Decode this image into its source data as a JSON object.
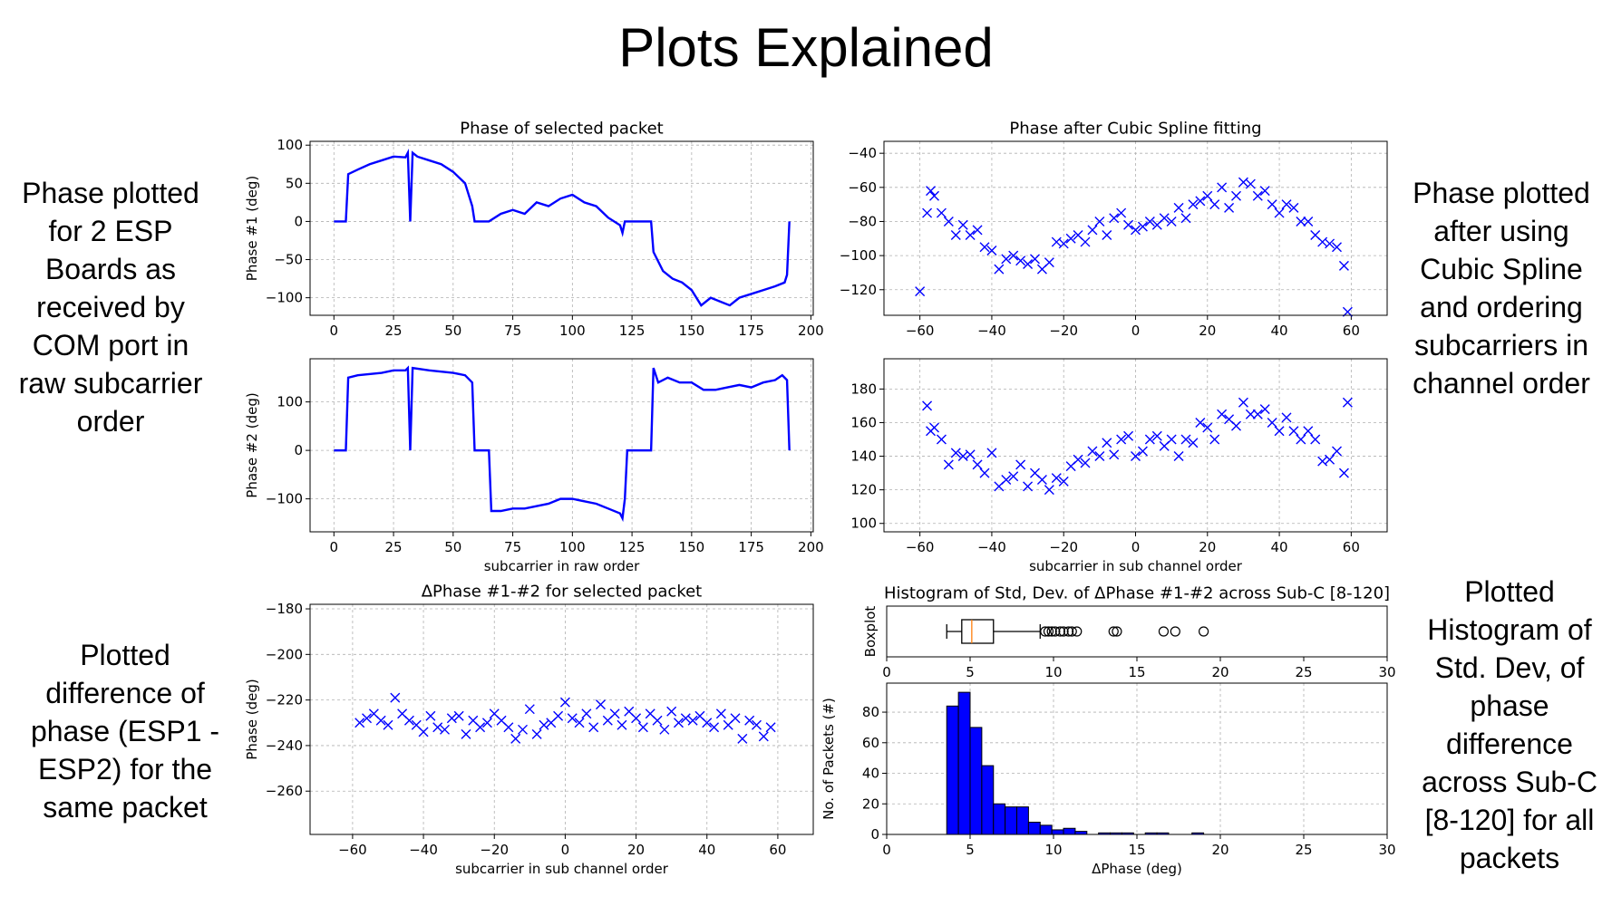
{
  "title": "Plots Explained",
  "captions": [
    "Phase plotted for 2 ESP Boards as received by COM port in raw subcarrier order",
    "Phase plotted after using Cubic Spline and ordering subcarriers in channel order",
    "Plotted difference of phase (ESP1 - ESP2) for the same packet",
    "Plotted Histogram of Std. Dev, of phase difference across Sub-C [8-120] for all packets"
  ],
  "chart_data": [
    {
      "type": "line",
      "title": "Phase of selected packet",
      "ylabel": "Phase #1 (deg)",
      "color": "#0000ff",
      "grid": true,
      "x": [
        0,
        5,
        6,
        10,
        15,
        20,
        25,
        30,
        31,
        32,
        33,
        35,
        40,
        45,
        50,
        55,
        58,
        59,
        65,
        70,
        75,
        80,
        85,
        90,
        95,
        100,
        105,
        110,
        115,
        120,
        121,
        122,
        133,
        134,
        138,
        142,
        146,
        150,
        154,
        158,
        162,
        166,
        170,
        175,
        180,
        185,
        189,
        190,
        191
      ],
      "values": [
        0,
        0,
        62,
        68,
        75,
        80,
        85,
        84,
        90,
        0,
        90,
        85,
        80,
        75,
        65,
        50,
        20,
        0,
        0,
        10,
        15,
        10,
        25,
        20,
        30,
        35,
        25,
        20,
        5,
        -5,
        -15,
        0,
        0,
        -40,
        -65,
        -75,
        -80,
        -90,
        -110,
        -100,
        -105,
        -110,
        -100,
        -95,
        -90,
        -85,
        -80,
        -70,
        0
      ],
      "xlim": [
        -10,
        201
      ],
      "ylim": [
        -123,
        105
      ],
      "xticks": [
        0,
        25,
        50,
        75,
        100,
        125,
        150,
        175,
        200
      ],
      "yticks": [
        {
          "value": -100,
          "label": "−100"
        },
        {
          "value": -50,
          "label": "−50"
        },
        0,
        50,
        100
      ]
    },
    {
      "type": "line",
      "ylabel": "Phase #2 (deg)",
      "xlabel": "subcarrier in raw order",
      "color": "#0000ff",
      "grid": true,
      "x": [
        0,
        5,
        6,
        10,
        20,
        25,
        30,
        31,
        32,
        33,
        40,
        50,
        55,
        58,
        59,
        65,
        66,
        70,
        75,
        80,
        90,
        95,
        100,
        105,
        110,
        115,
        120,
        121,
        122,
        123,
        133,
        134,
        136,
        140,
        145,
        150,
        155,
        160,
        165,
        170,
        175,
        180,
        185,
        188,
        190,
        191
      ],
      "values": [
        0,
        0,
        150,
        155,
        160,
        165,
        165,
        170,
        0,
        170,
        165,
        160,
        155,
        140,
        0,
        0,
        -125,
        -125,
        -120,
        -120,
        -110,
        -100,
        -100,
        -105,
        -110,
        -120,
        -130,
        -140,
        -100,
        0,
        0,
        170,
        140,
        150,
        140,
        140,
        125,
        125,
        130,
        135,
        130,
        140,
        145,
        155,
        145,
        0
      ],
      "xlim": [
        -10,
        201
      ],
      "ylim": [
        -168,
        189
      ],
      "xticks": [
        0,
        25,
        50,
        75,
        100,
        125,
        150,
        175,
        200
      ],
      "yticks": [
        {
          "value": -100,
          "label": "−100"
        },
        0,
        100
      ]
    },
    {
      "type": "scatter",
      "title": "Phase after Cubic Spline fitting",
      "color": "#0000ff",
      "grid": true,
      "x": [
        -60,
        -58,
        -57,
        -56,
        -54,
        -52,
        -50,
        -48,
        -46,
        -44,
        -42,
        -40,
        -38,
        -36,
        -34,
        -32,
        -30,
        -28,
        -26,
        -24,
        -22,
        -20,
        -18,
        -16,
        -14,
        -12,
        -10,
        -8,
        -6,
        -4,
        -2,
        0,
        2,
        4,
        6,
        8,
        10,
        12,
        14,
        16,
        18,
        20,
        22,
        24,
        26,
        28,
        30,
        32,
        34,
        36,
        38,
        40,
        42,
        44,
        46,
        48,
        50,
        52,
        54,
        56,
        58,
        59
      ],
      "values": [
        -121,
        -75,
        -62,
        -65,
        -75,
        -80,
        -88,
        -82,
        -88,
        -85,
        -95,
        -97,
        -108,
        -102,
        -100,
        -103,
        -105,
        -102,
        -108,
        -104,
        -92,
        -93,
        -90,
        -88,
        -92,
        -85,
        -80,
        -88,
        -78,
        -75,
        -82,
        -85,
        -83,
        -80,
        -82,
        -78,
        -80,
        -72,
        -78,
        -70,
        -68,
        -65,
        -70,
        -60,
        -72,
        -65,
        -57,
        -58,
        -65,
        -62,
        -70,
        -75,
        -70,
        -72,
        -80,
        -80,
        -88,
        -92,
        -93,
        -95,
        -106,
        -133
      ],
      "xlim": [
        -70,
        70
      ],
      "ylim": [
        -135,
        -33
      ],
      "xticks": [
        {
          "value": -60,
          "label": "−60"
        },
        {
          "value": -40,
          "label": "−40"
        },
        {
          "value": -20,
          "label": "−20"
        },
        0,
        20,
        40,
        60
      ],
      "yticks": [
        {
          "value": -120,
          "label": "−120"
        },
        {
          "value": -100,
          "label": "−100"
        },
        {
          "value": -80,
          "label": "−80"
        },
        {
          "value": -60,
          "label": "−60"
        },
        {
          "value": -40,
          "label": "−40"
        }
      ]
    },
    {
      "type": "scatter",
      "xlabel": "subcarrier in sub channel order",
      "color": "#0000ff",
      "grid": true,
      "x": [
        -58,
        -57,
        -56,
        -54,
        -52,
        -50,
        -48,
        -46,
        -44,
        -42,
        -40,
        -38,
        -36,
        -34,
        -32,
        -30,
        -28,
        -26,
        -24,
        -22,
        -20,
        -18,
        -16,
        -14,
        -12,
        -10,
        -8,
        -6,
        -4,
        -2,
        0,
        2,
        4,
        6,
        8,
        10,
        12,
        14,
        16,
        18,
        20,
        22,
        24,
        26,
        28,
        30,
        32,
        34,
        36,
        38,
        40,
        42,
        44,
        46,
        48,
        50,
        52,
        54,
        56,
        58,
        59
      ],
      "values": [
        170,
        155,
        157,
        150,
        135,
        142,
        140,
        141,
        135,
        130,
        142,
        122,
        126,
        128,
        135,
        122,
        130,
        126,
        120,
        127,
        125,
        134,
        138,
        136,
        143,
        140,
        148,
        141,
        150,
        152,
        140,
        143,
        150,
        152,
        146,
        150,
        140,
        150,
        148,
        160,
        157,
        150,
        165,
        162,
        158,
        172,
        165,
        165,
        168,
        160,
        155,
        163,
        155,
        150,
        155,
        150,
        137,
        138,
        143,
        130,
        172
      ],
      "xlim": [
        -70,
        70
      ],
      "ylim": [
        95,
        198
      ],
      "xticks": [
        {
          "value": -60,
          "label": "−60"
        },
        {
          "value": -40,
          "label": "−40"
        },
        {
          "value": -20,
          "label": "−20"
        },
        0,
        20,
        40,
        60
      ],
      "yticks": [
        100,
        120,
        140,
        160,
        180
      ]
    },
    {
      "type": "scatter",
      "title": "ΔPhase #1-#2 for selected packet",
      "ylabel": "Phase (deg)",
      "xlabel": "subcarrier in sub channel order",
      "color": "#0000ff",
      "grid": true,
      "x": [
        -58,
        -56,
        -54,
        -52,
        -50,
        -48,
        -46,
        -44,
        -42,
        -40,
        -38,
        -36,
        -34,
        -32,
        -30,
        -28,
        -26,
        -24,
        -22,
        -20,
        -18,
        -16,
        -14,
        -12,
        -10,
        -8,
        -6,
        -4,
        -2,
        0,
        2,
        4,
        6,
        8,
        10,
        12,
        14,
        16,
        18,
        20,
        22,
        24,
        26,
        28,
        30,
        32,
        34,
        36,
        38,
        40,
        42,
        44,
        46,
        48,
        50,
        52,
        54,
        56,
        58
      ],
      "values": [
        -230,
        -228,
        -226,
        -229,
        -231,
        -219,
        -226,
        -229,
        -231,
        -234,
        -227,
        -232,
        -233,
        -228,
        -227,
        -235,
        -229,
        -232,
        -230,
        -226,
        -229,
        -232,
        -237,
        -233,
        -224,
        -235,
        -231,
        -230,
        -227,
        -221,
        -228,
        -230,
        -226,
        -232,
        -222,
        -229,
        -226,
        -231,
        -225,
        -228,
        -232,
        -226,
        -229,
        -233,
        -225,
        -230,
        -228,
        -229,
        -227,
        -230,
        -232,
        -226,
        -231,
        -228,
        -237,
        -229,
        -231,
        -236,
        -232
      ],
      "xlim": [
        -72,
        70
      ],
      "ylim": [
        -279,
        -178
      ],
      "xticks": [
        {
          "value": -60,
          "label": "−60"
        },
        {
          "value": -40,
          "label": "−40"
        },
        {
          "value": -20,
          "label": "−20"
        },
        0,
        20,
        40,
        60
      ],
      "yticks": [
        {
          "value": -260,
          "label": "−260"
        },
        {
          "value": -240,
          "label": "−240"
        },
        {
          "value": -220,
          "label": "−220"
        },
        {
          "value": -200,
          "label": "−200"
        },
        {
          "value": -180,
          "label": "−180"
        }
      ]
    },
    {
      "type": "box",
      "title": "Histogram of Std, Dev. of ΔPhase #1-#2 across Sub-C [8-120]",
      "ylabel": "Boxplot",
      "color": "#000000",
      "median_color": "#ff7f0e",
      "grid": false,
      "stats": {
        "whislo": 3.6,
        "q1": 4.5,
        "med": 5.1,
        "q3": 6.4,
        "whishi": 9.2
      },
      "fliers": [
        9.5,
        9.7,
        9.9,
        10.1,
        10.4,
        10.6,
        10.9,
        11.1,
        11.4,
        13.6,
        13.8,
        16.6,
        17.3,
        19.0
      ],
      "xlim": [
        0,
        30
      ],
      "xticks": [
        0,
        5,
        10,
        15,
        20,
        25,
        30
      ]
    },
    {
      "type": "histogram",
      "xlabel": "ΔPhase (deg)",
      "ylabel": "No. of Packets (#)",
      "color": "#0000ff",
      "edgecolor": "#000000",
      "grid": true,
      "bins": [
        3.6,
        4.3,
        5.0,
        5.7,
        6.4,
        7.1,
        7.8,
        8.5,
        9.2,
        9.9,
        10.6,
        11.3,
        12.0,
        12.7,
        13.4,
        14.1,
        14.8,
        15.5,
        16.2,
        16.9,
        17.6,
        18.3,
        19.0
      ],
      "values": [
        84,
        93,
        70,
        45,
        20,
        18,
        18,
        8,
        6,
        3,
        4,
        2,
        0,
        1,
        1,
        1,
        0,
        1,
        1,
        0,
        0,
        1
      ],
      "xlim": [
        0,
        30
      ],
      "ylim": [
        0,
        99
      ],
      "xticks": [
        0,
        5,
        10,
        15,
        20,
        25,
        30
      ],
      "yticks": [
        0,
        20,
        40,
        60,
        80
      ]
    }
  ]
}
